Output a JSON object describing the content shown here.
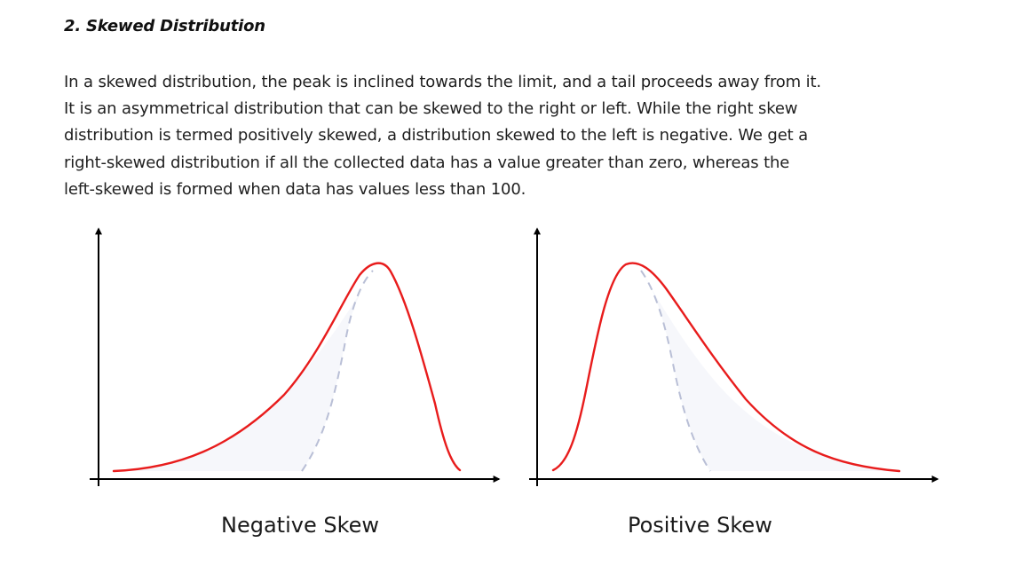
{
  "section": {
    "title": "2. Skewed Distribution",
    "paragraph_lines": [
      "In a skewed distribution, the peak is inclined towards the limit, and a tail proceeds away from it.",
      "It is an asymmetrical distribution that can be skewed to the right or left. While the right skew",
      "distribution is termed positively skewed, a distribution skewed to the left is negative. We get a",
      "right-skewed distribution if all the collected data has a value greater than zero, whereas the",
      "left-skewed is formed when data has values less than 100."
    ]
  },
  "figure": {
    "panels": [
      {
        "caption": "Negative Skew"
      },
      {
        "caption": "Positive Skew"
      }
    ],
    "colors": {
      "curve": "#e81c1c",
      "symmetric_reference": "#b9bfd6",
      "shaded_area": "#f6f7fb",
      "axes": "#000000"
    }
  }
}
